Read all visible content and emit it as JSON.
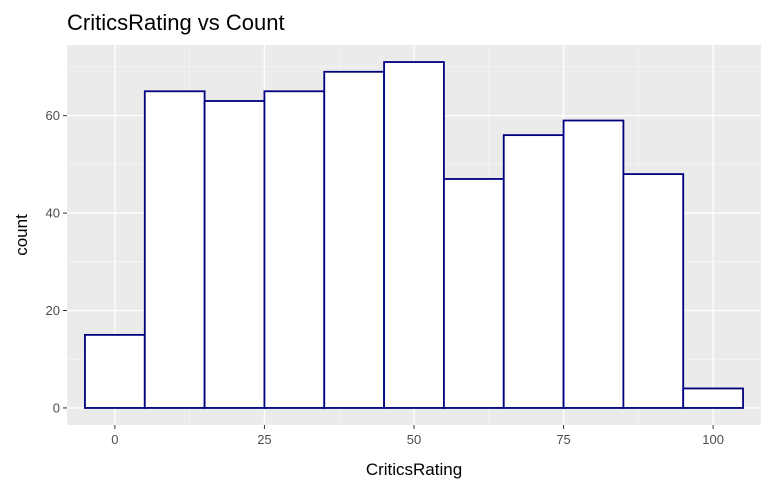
{
  "chart_data": {
    "type": "bar",
    "title": "CriticsRating vs Count",
    "xlabel": "CriticsRating",
    "ylabel": "count",
    "bin_centers": [
      0,
      10,
      20,
      30,
      40,
      50,
      60,
      70,
      80,
      90,
      100
    ],
    "bin_width": 10,
    "values": [
      15,
      65,
      63,
      65,
      69,
      71,
      47,
      56,
      59,
      48,
      4
    ],
    "xlim": [
      -8,
      108
    ],
    "ylim": [
      -3.5,
      74.5
    ],
    "x_ticks": [
      0,
      25,
      50,
      75,
      100
    ],
    "y_ticks": [
      0,
      20,
      40,
      60
    ],
    "grid": true,
    "legend": "none",
    "colors": {
      "panel_background": "#ebebeb",
      "grid_major": "#ffffff",
      "grid_minor": "#f5f5f5",
      "bar_fill": "#ffffff",
      "bar_outline": "#000080",
      "tick_text": "#4d4d4d"
    }
  }
}
